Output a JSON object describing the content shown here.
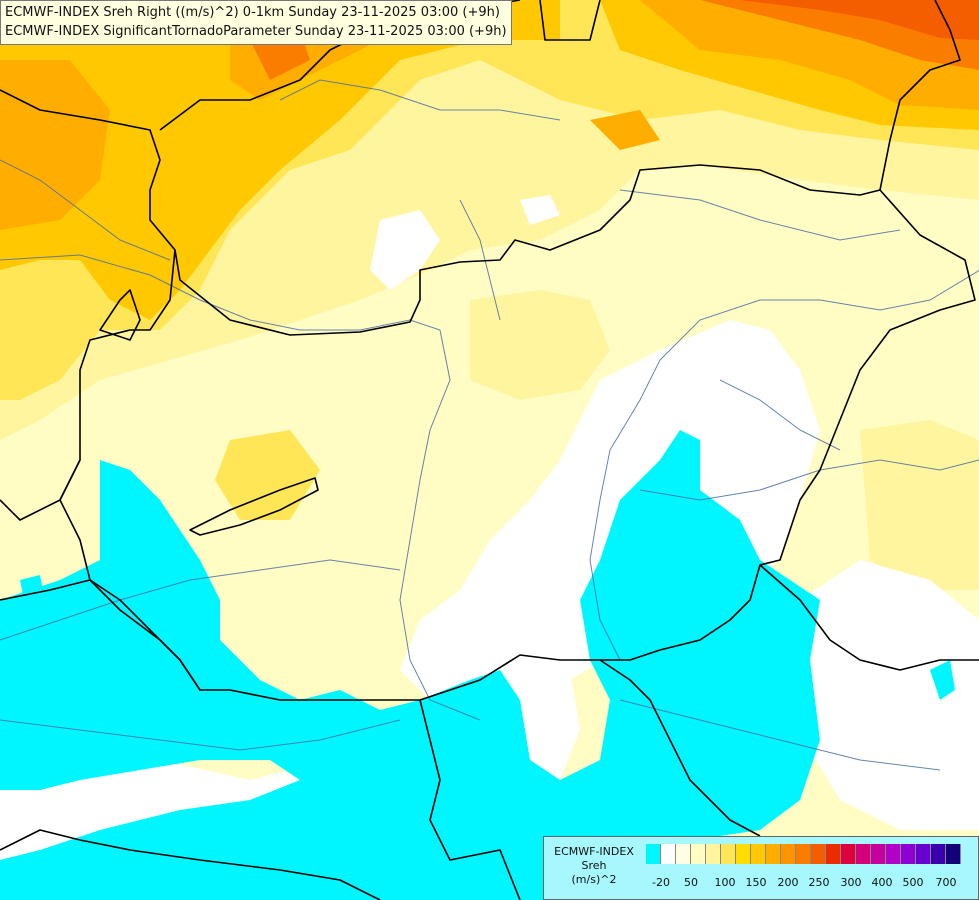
{
  "header": {
    "line1": "ECMWF-INDEX Sreh Right ((m/s)^2) 0-1km Sunday 23-11-2025 03:00 (+9h)",
    "line2": "ECMWF-INDEX SignificantTornadoParameter Sunday 23-11-2025 03:00 (+9h)"
  },
  "legend": {
    "title": "ECMWF-INDEX",
    "name": "Sreh",
    "unit": "(m/s)^2",
    "colors": [
      "#00f6ff",
      "#ffffff",
      "#fffee0",
      "#fffcc4",
      "#fff59e",
      "#ffe657",
      "#ffdd00",
      "#ffc800",
      "#ffae00",
      "#ff9400",
      "#fa7d00",
      "#f45d00",
      "#ec2b00",
      "#e0003b",
      "#d40078",
      "#c5009c",
      "#b300c8",
      "#8c00d4",
      "#6800d0",
      "#3b00ad",
      "#140078"
    ],
    "tick_labels": [
      "-20",
      "50",
      "100",
      "150",
      "200",
      "250",
      "300",
      "400",
      "500",
      "700"
    ]
  },
  "map": {
    "palette": {
      "background": "#fffcc4",
      "light_yellow": "#fff59e",
      "yellow": "#ffe657",
      "gold": "#ffc800",
      "orange": "#ffae00",
      "dark_orange": "#fa7d00",
      "red_orange": "#f45d00",
      "white": "#ffffff",
      "cyan": "#00f6ff",
      "border": "#000000",
      "river": "#4a6fa5"
    }
  }
}
